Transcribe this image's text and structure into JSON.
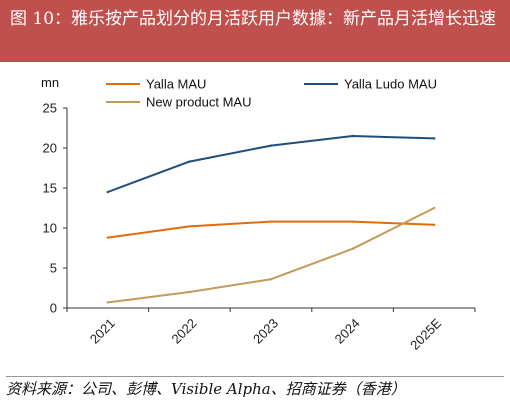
{
  "figure": {
    "title": "图 10：雅乐按产品划分的月活跃用户数據：新产品月活增长迅速",
    "source": "资料来源：公司、彭博、Visible Alpha、招商证券（香港）"
  },
  "chart_data": {
    "type": "line",
    "unit_label": "mn",
    "categories": [
      "2021",
      "2022",
      "2023",
      "2024",
      "2025E"
    ],
    "ylim": [
      0,
      25
    ],
    "yticks": [
      0,
      5,
      10,
      15,
      20,
      25
    ],
    "grid": false,
    "legend_position": "top",
    "series": [
      {
        "name": "Yalla MAU",
        "color": "#e36c0a",
        "values": [
          8.8,
          10.2,
          10.8,
          10.8,
          10.4
        ]
      },
      {
        "name": "Yalla Ludo MAU",
        "color": "#1f4e79",
        "values": [
          14.5,
          18.3,
          20.3,
          21.5,
          21.2
        ]
      },
      {
        "name": "New product MAU",
        "color": "#c49a5a",
        "values": [
          0.7,
          2.0,
          3.6,
          7.4,
          12.5
        ]
      }
    ]
  }
}
